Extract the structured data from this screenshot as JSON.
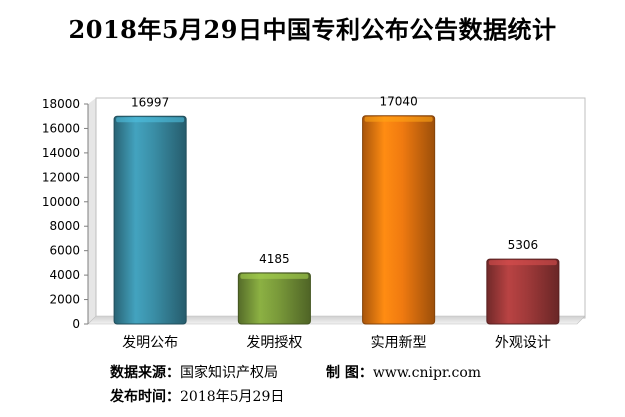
{
  "chart_data": {
    "type": "bar",
    "title": "2018年5月29日中国专利公布公告数据统计",
    "xlabel": "",
    "ylabel": "",
    "categories": [
      "发明公布",
      "发明授权",
      "实用新型",
      "外观设计"
    ],
    "values": [
      16997,
      4185,
      17040,
      5306
    ],
    "ylim": [
      0,
      18000
    ],
    "yticks": [
      0,
      2000,
      4000,
      6000,
      8000,
      10000,
      12000,
      14000,
      16000,
      18000
    ],
    "colors": [
      "#3a8ea6",
      "#7a9a3a",
      "#f07a10",
      "#a13a3a"
    ],
    "grid": false,
    "legend": "none"
  },
  "footer": {
    "source_label": "数据来源：",
    "source_value": "国家知识产权局",
    "maker_label": "制  图：",
    "maker_value": "www.cnipr.com",
    "date_label": "发布时间：",
    "date_value": "2018年5月29日"
  }
}
